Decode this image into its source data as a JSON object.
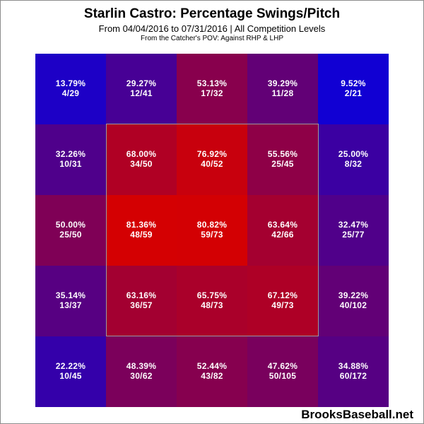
{
  "header": {
    "title": "Starlin Castro: Percentage Swings/Pitch",
    "subtitle": "From 04/04/2016 to 07/31/2016 | All Competition Levels",
    "note": "From the Catcher's POV:  Against RHP & LHP"
  },
  "brand": "BrooksBaseball.net",
  "colors": {
    "low": "#0a00d8",
    "high": "#d40000",
    "strike_zone_border": "#9a9a9a"
  },
  "chart_data": {
    "type": "heatmap",
    "title": "Starlin Castro: Percentage Swings/Pitch",
    "rows": 5,
    "cols": 5,
    "strike_zone": {
      "rows": [
        1,
        3
      ],
      "cols": [
        1,
        3
      ]
    },
    "cells": [
      [
        {
          "pct": "13.79%",
          "frac": "4/29",
          "value": 13.79
        },
        {
          "pct": "29.27%",
          "frac": "12/41",
          "value": 29.27
        },
        {
          "pct": "53.13%",
          "frac": "17/32",
          "value": 53.13
        },
        {
          "pct": "39.29%",
          "frac": "11/28",
          "value": 39.29
        },
        {
          "pct": "9.52%",
          "frac": "2/21",
          "value": 9.52
        }
      ],
      [
        {
          "pct": "32.26%",
          "frac": "10/31",
          "value": 32.26
        },
        {
          "pct": "68.00%",
          "frac": "34/50",
          "value": 68.0
        },
        {
          "pct": "76.92%",
          "frac": "40/52",
          "value": 76.92
        },
        {
          "pct": "55.56%",
          "frac": "25/45",
          "value": 55.56
        },
        {
          "pct": "25.00%",
          "frac": "8/32",
          "value": 25.0
        }
      ],
      [
        {
          "pct": "50.00%",
          "frac": "25/50",
          "value": 50.0
        },
        {
          "pct": "81.36%",
          "frac": "48/59",
          "value": 81.36
        },
        {
          "pct": "80.82%",
          "frac": "59/73",
          "value": 80.82
        },
        {
          "pct": "63.64%",
          "frac": "42/66",
          "value": 63.64
        },
        {
          "pct": "32.47%",
          "frac": "25/77",
          "value": 32.47
        }
      ],
      [
        {
          "pct": "35.14%",
          "frac": "13/37",
          "value": 35.14
        },
        {
          "pct": "63.16%",
          "frac": "36/57",
          "value": 63.16
        },
        {
          "pct": "65.75%",
          "frac": "48/73",
          "value": 65.75
        },
        {
          "pct": "67.12%",
          "frac": "49/73",
          "value": 67.12
        },
        {
          "pct": "39.22%",
          "frac": "40/102",
          "value": 39.22
        }
      ],
      [
        {
          "pct": "22.22%",
          "frac": "10/45",
          "value": 22.22
        },
        {
          "pct": "48.39%",
          "frac": "30/62",
          "value": 48.39
        },
        {
          "pct": "52.44%",
          "frac": "43/82",
          "value": 52.44
        },
        {
          "pct": "47.62%",
          "frac": "50/105",
          "value": 47.62
        },
        {
          "pct": "34.88%",
          "frac": "60/172",
          "value": 34.88
        }
      ]
    ]
  }
}
